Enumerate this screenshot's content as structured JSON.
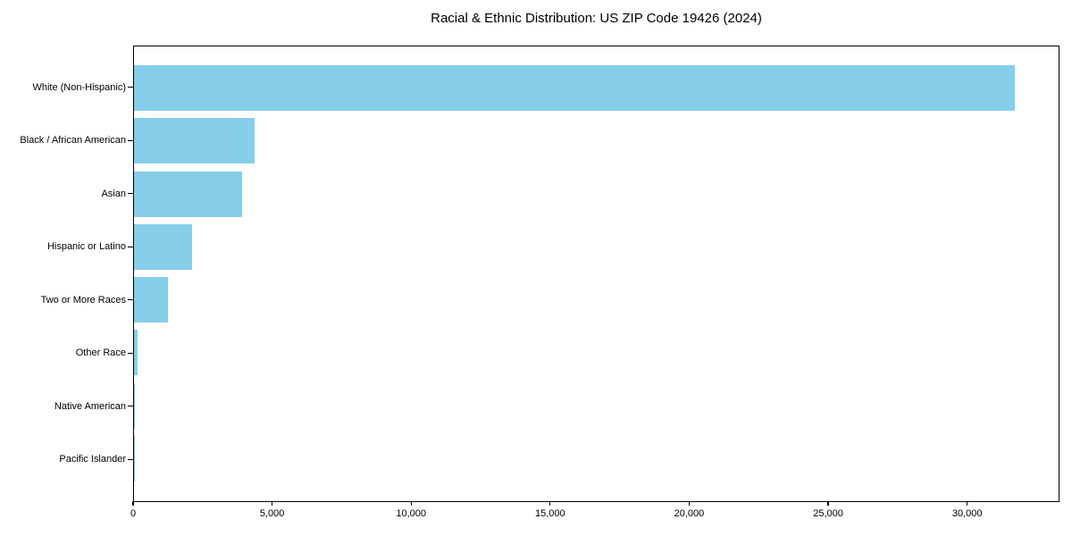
{
  "chart_data": {
    "type": "bar",
    "orientation": "horizontal",
    "title": "Racial & Ethnic Distribution: US ZIP Code 19426 (2024)",
    "categories": [
      "White (Non-Hispanic)",
      "Black / African American",
      "Asian",
      "Hispanic or Latino",
      "Two or More Races",
      "Other Race",
      "Native American",
      "Pacific Islander"
    ],
    "values": [
      31730,
      4340,
      3890,
      2090,
      1220,
      140,
      30,
      10
    ],
    "xlabel": "",
    "ylabel": "",
    "xlim": [
      0,
      33320
    ],
    "xticks": [
      0,
      5000,
      10000,
      15000,
      20000,
      25000,
      30000
    ],
    "xtick_labels": [
      "0",
      "5,000",
      "10,000",
      "15,000",
      "20,000",
      "25,000",
      "30,000"
    ],
    "bar_color": "#87CEEB",
    "spine_color": "#000000",
    "text_color": "#000000",
    "grid": false,
    "legend": null
  }
}
